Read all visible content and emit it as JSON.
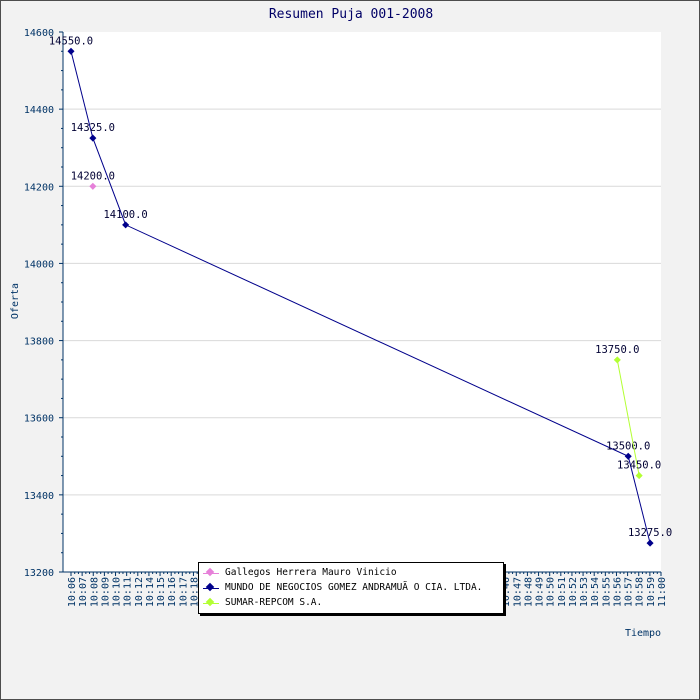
{
  "chart_data": {
    "type": "line",
    "title": "Resumen Puja 001-2008",
    "xlabel": "Tiempo",
    "ylabel": "Oferta",
    "ylim": [
      13200,
      14600
    ],
    "yticks": [
      13200,
      13400,
      13600,
      13800,
      14000,
      14200,
      14400,
      14600
    ],
    "grid": true,
    "legend_position": "bottom-center",
    "xticks": [
      "10:06",
      "10:07",
      "10:08",
      "10:09",
      "10:10",
      "10:11",
      "10:12",
      "10:14",
      "10:15",
      "10:16",
      "10:17",
      "10:18",
      "10:19",
      "10:20",
      "10:21",
      "10:22",
      "10:23",
      "10:24",
      "10:25",
      "10:26",
      "10:27",
      "10:28",
      "10:29",
      "10:30",
      "10:31",
      "10:32",
      "10:33",
      "10:34",
      "10:35",
      "10:36",
      "10:37",
      "10:38",
      "10:39",
      "10:40",
      "10:41",
      "10:42",
      "10:43",
      "10:44",
      "10:45",
      "10:46",
      "10:47",
      "10:48",
      "10:49",
      "10:50",
      "10:51",
      "10:52",
      "10:53",
      "10:54",
      "10:55",
      "10:56",
      "10:57",
      "10:58",
      "10:59",
      "11:00"
    ],
    "series": [
      {
        "name": "Gallegos Herrera Mauro Vinicio",
        "color": "#e680d9",
        "x": [
          "10:08"
        ],
        "y": [
          14200
        ],
        "labels": [
          "14200.0"
        ]
      },
      {
        "name": "MUNDO DE NEGOCIOS GOMEZ ANDRAMUÃ O CIA. LTDA.",
        "color": "#00008b",
        "x": [
          "10:06",
          "10:08",
          "10:11",
          "10:57",
          "10:59"
        ],
        "y": [
          14550,
          14325,
          14100,
          13500,
          13275
        ],
        "labels": [
          "14550.0",
          "14325.0",
          "14100.0",
          "13500.0",
          "13275.0"
        ]
      },
      {
        "name": "SUMAR-REPCOM S.A.",
        "color": "#b3ff33",
        "x": [
          "10:56",
          "10:58"
        ],
        "y": [
          13750,
          13450
        ],
        "labels": [
          "13750.0",
          "13450.0"
        ]
      }
    ]
  }
}
